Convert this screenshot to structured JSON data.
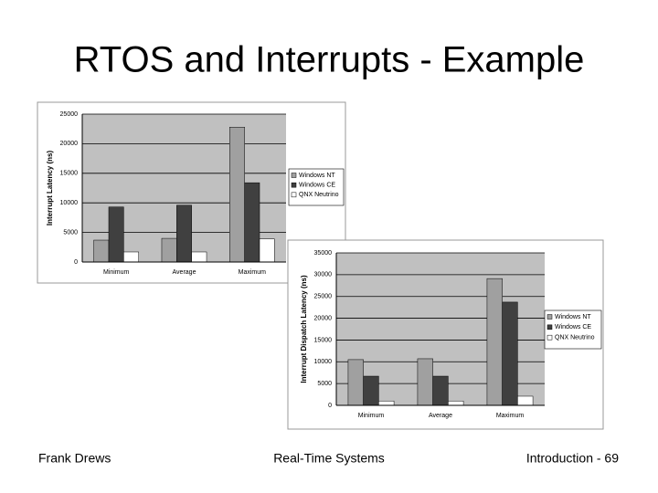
{
  "title": "RTOS and Interrupts - Example",
  "footer": {
    "left": "Frank Drews",
    "center": "Real-Time Systems",
    "right": "Introduction - 69"
  },
  "chart_data": [
    {
      "type": "bar",
      "y_label": "Interrupt Latency (ns)",
      "categories": [
        "Minimum",
        "Average",
        "Maximum"
      ],
      "series": [
        {
          "name": "Windows NT",
          "color": "#a0a0a0",
          "values": [
            3700,
            4000,
            22800
          ]
        },
        {
          "name": "Windows CE",
          "color": "#404040",
          "values": [
            9300,
            9600,
            13400
          ]
        },
        {
          "name": "QNX Neutrino",
          "color": "#ffffff",
          "values": [
            1700,
            1700,
            3900
          ]
        }
      ],
      "ylim": [
        0,
        25000
      ],
      "yticks": [
        0,
        5000,
        10000,
        15000,
        20000,
        25000
      ],
      "grid": true,
      "legend": "right"
    },
    {
      "type": "bar",
      "y_label": "Interrupt Dispatch Latency (ns)",
      "categories": [
        "Minimum",
        "Average",
        "Maximum"
      ],
      "series": [
        {
          "name": "Windows NT",
          "color": "#a0a0a0",
          "values": [
            10500,
            10700,
            29100
          ]
        },
        {
          "name": "Windows CE",
          "color": "#404040",
          "values": [
            6700,
            6700,
            23700
          ]
        },
        {
          "name": "QNX Neutrino",
          "color": "#ffffff",
          "values": [
            1000,
            1000,
            2100
          ]
        }
      ],
      "ylim": [
        0,
        35000
      ],
      "yticks": [
        0,
        5000,
        10000,
        15000,
        20000,
        25000,
        30000,
        35000
      ],
      "grid": true,
      "legend": "right"
    }
  ]
}
